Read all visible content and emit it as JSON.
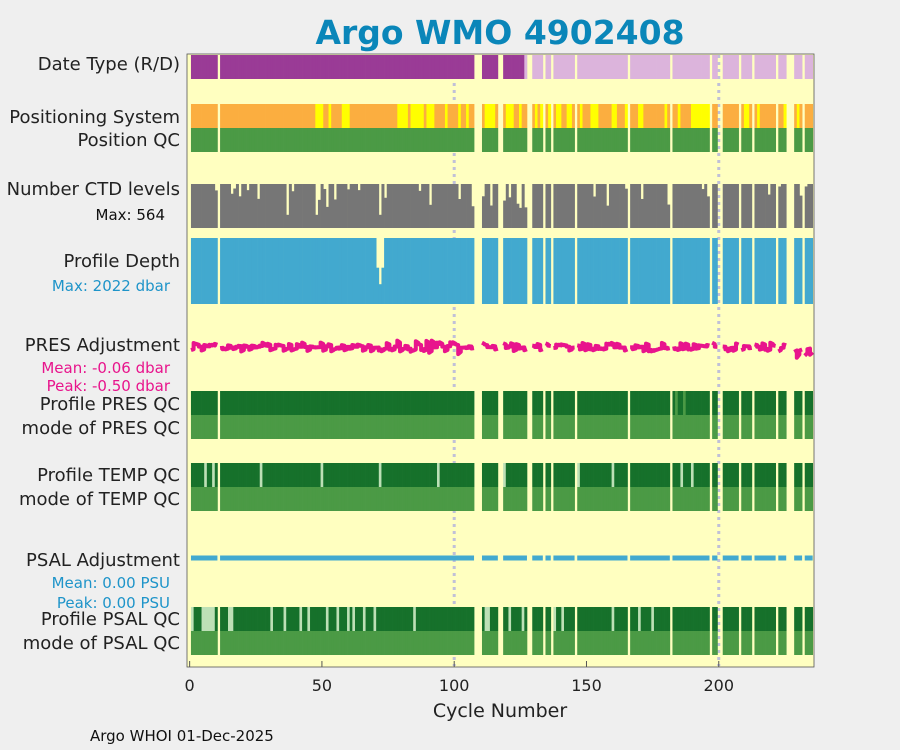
{
  "chart_data": {
    "type": "timeline",
    "title": "Argo WMO 4902408",
    "xlabel": "Cycle Number",
    "xlim": [
      -1,
      236
    ],
    "xticks": [
      0,
      50,
      100,
      150,
      200
    ],
    "gridlines_at": [
      100,
      200
    ],
    "missing_cycles": [
      0,
      11,
      108,
      109,
      110,
      117,
      118,
      128,
      129,
      134,
      137,
      146,
      166,
      182,
      197,
      200,
      201,
      208,
      213,
      222,
      226,
      227,
      228,
      232
    ],
    "rows": [
      {
        "label": "Date Type (R/D)",
        "kind": "categorical",
        "segments": [
          {
            "from": 0,
            "to": 126,
            "value": "R"
          },
          {
            "from": 127,
            "to": 235,
            "value": "D"
          }
        ]
      },
      {
        "label": "Positioning System",
        "kind": "categorical",
        "alt_cycles": [
          48,
          49,
          50,
          53,
          58,
          59,
          60,
          79,
          80,
          81,
          82,
          84,
          85,
          86,
          87,
          88,
          90,
          91,
          92,
          97,
          102,
          105,
          112,
          113,
          114,
          115,
          120,
          121,
          122,
          125,
          131,
          133,
          136,
          139,
          140,
          143,
          144,
          148,
          152,
          153,
          154,
          160,
          161,
          165,
          170,
          171,
          180,
          185,
          190,
          191,
          192,
          193,
          194,
          195,
          196,
          210,
          211,
          215,
          225,
          230
        ]
      },
      {
        "label": "Position QC",
        "kind": "categorical",
        "values": "all good"
      },
      {
        "label": "Number CTD levels",
        "kind": "bar",
        "max_label": "Max: 564",
        "max": 564
      },
      {
        "label": "Profile Depth",
        "kind": "bar",
        "max_label": "Max: 2022 dbar",
        "max": 2022
      },
      {
        "label": "PRES Adjustment",
        "kind": "line",
        "mean_label": "Mean: -0.06 dbar",
        "peak_label": "Peak: -0.50 dbar",
        "mean": -0.06,
        "peak": -0.5,
        "unit": "dbar"
      },
      {
        "label": "Profile PRES QC",
        "kind": "categorical",
        "values": "A"
      },
      {
        "label": "mode of PRES QC",
        "kind": "categorical",
        "values": "1"
      },
      {
        "label": "Profile TEMP QC",
        "kind": "categorical",
        "values": "A"
      },
      {
        "label": "mode of TEMP QC",
        "kind": "categorical",
        "values": "1"
      },
      {
        "label": "PSAL Adjustment",
        "kind": "line",
        "mean_label": "Mean: 0.00 PSU",
        "peak_label": "Peak: 0.00 PSU",
        "mean": 0.0,
        "peak": 0.0,
        "unit": "PSU"
      },
      {
        "label": "Profile PSAL QC",
        "kind": "categorical",
        "values": "A/B"
      },
      {
        "label": "mode of PSAL QC",
        "kind": "categorical",
        "values": "1"
      }
    ]
  },
  "colors": {
    "background": "#efefef",
    "plot_bg": "#ffffc0",
    "title": "#0a86b9",
    "date_real": "#9a3b96",
    "date_delayed": "#dcb4dc",
    "pos_gps": "#fbae40",
    "pos_alt": "#ffff00",
    "good_light": "#4b9a45",
    "good_dark": "#16712b",
    "profile_b": "#bde0b6",
    "ctd": "#767676",
    "depth": "#42a9cf",
    "pres_adj": "#e8148c",
    "pres_text": "#e8148c",
    "psal_adj": "#42a9cf",
    "psal_text": "#1e94c9",
    "grid": "#c0c0d8"
  },
  "labels": {
    "row_date": "Date Type (R/D)",
    "row_pos": "Positioning System",
    "row_posqc": "Position QC",
    "row_ctd": "Number CTD levels",
    "ctd_max": "Max: 564",
    "row_depth": "Profile Depth",
    "depth_max": "Max: 2022 dbar",
    "row_pres": "PRES Adjustment",
    "pres_mean": "Mean: -0.06 dbar",
    "pres_peak": "Peak: -0.50 dbar",
    "row_presqc": "Profile PRES QC",
    "row_presmode": "mode of PRES QC",
    "row_tempqc": "Profile TEMP QC",
    "row_tempmode": "mode of TEMP QC",
    "row_psal": "PSAL Adjustment",
    "psal_mean": "Mean: 0.00 PSU",
    "psal_peak": "Peak: 0.00 PSU",
    "row_psalqc": "Profile PSAL QC",
    "row_psalmode": "mode of PSAL QC"
  },
  "footer": "Argo WHOI 01-Dec-2025"
}
